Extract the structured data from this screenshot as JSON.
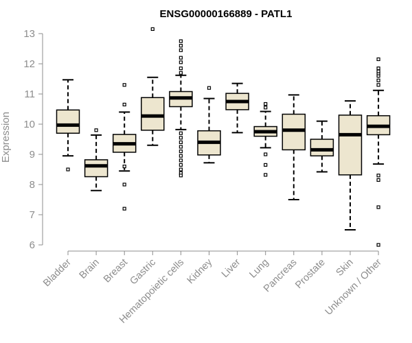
{
  "chart_data": {
    "type": "boxplot",
    "title": "ENSG00000166889 - PATL1",
    "xlabel": "",
    "ylabel": "Expression",
    "ylim": [
      6,
      13
    ],
    "yticks": [
      6,
      7,
      8,
      9,
      10,
      11,
      12,
      13
    ],
    "box_fill": "#ede6cf",
    "categories": [
      "Bladder",
      "Brain",
      "Breast",
      "Gastric",
      "Hematopoietic cells",
      "Kidney",
      "Liver",
      "Lung",
      "Pancreas",
      "Prostate",
      "Skin",
      "Unknown / Other"
    ],
    "boxes": [
      {
        "label": "Bladder",
        "whisker_low": 8.95,
        "q1": 9.7,
        "median": 9.97,
        "q3": 10.47,
        "whisker_high": 11.47,
        "outliers": [
          8.5
        ]
      },
      {
        "label": "Brain",
        "whisker_low": 7.8,
        "q1": 8.26,
        "median": 8.62,
        "q3": 8.82,
        "whisker_high": 9.64,
        "outliers": [
          9.8
        ]
      },
      {
        "label": "Breast",
        "whisker_low": 8.45,
        "q1": 9.07,
        "median": 9.35,
        "q3": 9.66,
        "whisker_high": 10.4,
        "outliers": [
          8.6,
          8.0,
          7.2,
          10.65,
          11.3
        ]
      },
      {
        "label": "Gastric",
        "whisker_low": 9.3,
        "q1": 9.8,
        "median": 10.27,
        "q3": 10.88,
        "whisker_high": 11.55,
        "outliers": [
          13.15
        ]
      },
      {
        "label": "Hematopoietic cells",
        "whisker_low": 9.82,
        "q1": 10.58,
        "median": 10.87,
        "q3": 11.08,
        "whisker_high": 11.62,
        "outliers": [
          9.7,
          9.55,
          9.4,
          9.25,
          9.1,
          8.95,
          8.8,
          8.65,
          8.5,
          8.38,
          8.3,
          11.7,
          11.85,
          12.05,
          12.2,
          12.45,
          12.6,
          12.75
        ]
      },
      {
        "label": "Kidney",
        "whisker_low": 8.72,
        "q1": 8.98,
        "median": 9.4,
        "q3": 9.78,
        "whisker_high": 10.85,
        "outliers": [
          11.2
        ]
      },
      {
        "label": "Liver",
        "whisker_low": 9.72,
        "q1": 10.48,
        "median": 10.75,
        "q3": 11.02,
        "whisker_high": 11.35,
        "outliers": []
      },
      {
        "label": "Lung",
        "whisker_low": 9.22,
        "q1": 9.6,
        "median": 9.75,
        "q3": 9.92,
        "whisker_high": 10.42,
        "outliers": [
          9.0,
          8.65,
          8.32,
          10.55,
          10.67
        ]
      },
      {
        "label": "Pancreas",
        "whisker_low": 7.5,
        "q1": 9.15,
        "median": 9.8,
        "q3": 10.33,
        "whisker_high": 10.97,
        "outliers": []
      },
      {
        "label": "Prostate",
        "whisker_low": 8.42,
        "q1": 8.95,
        "median": 9.15,
        "q3": 9.5,
        "whisker_high": 10.1,
        "outliers": []
      },
      {
        "label": "Skin",
        "whisker_low": 6.5,
        "q1": 8.32,
        "median": 9.65,
        "q3": 10.3,
        "whisker_high": 10.77,
        "outliers": []
      },
      {
        "label": "Unknown / Other",
        "whisker_low": 8.68,
        "q1": 9.65,
        "median": 9.93,
        "q3": 10.28,
        "whisker_high": 11.12,
        "outliers": [
          8.3,
          8.15,
          7.25,
          6.0,
          11.3,
          11.45,
          11.6,
          11.68,
          11.75,
          11.85,
          12.15
        ]
      }
    ]
  }
}
